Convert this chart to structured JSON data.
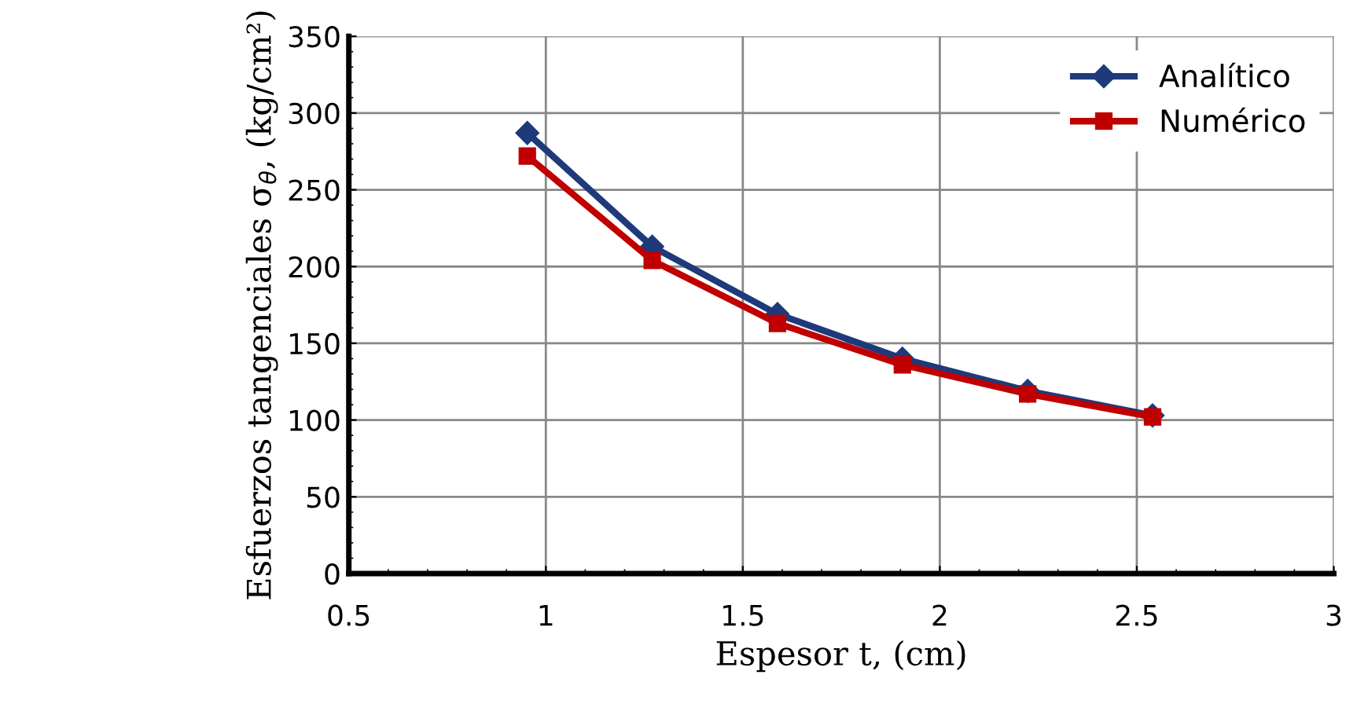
{
  "chart_data": {
    "type": "line",
    "xlabel": "Espesor t, (cm)",
    "ylabel": "Esfuerzos tangenciales σ$_{θ}$, (kg/cm²)",
    "x": [
      0.953,
      1.27,
      1.588,
      1.905,
      2.223,
      2.54
    ],
    "series": [
      {
        "name": "Analítico",
        "color": "#1f3a7a",
        "marker": "diamond",
        "values": [
          287,
          213,
          169,
          140,
          119,
          103
        ]
      },
      {
        "name": "Numérico",
        "color": "#c00000",
        "marker": "square",
        "values": [
          272,
          204,
          163,
          136,
          117,
          102
        ]
      }
    ],
    "xlim": [
      0.5,
      3
    ],
    "xticks": [
      0.5,
      1,
      1.5,
      2,
      2.5,
      3
    ],
    "ylim": [
      0,
      350
    ],
    "yticks": [
      0,
      50,
      100,
      150,
      200,
      250,
      300,
      350
    ],
    "grid": true,
    "legend": "top right",
    "line_style": "solid"
  }
}
